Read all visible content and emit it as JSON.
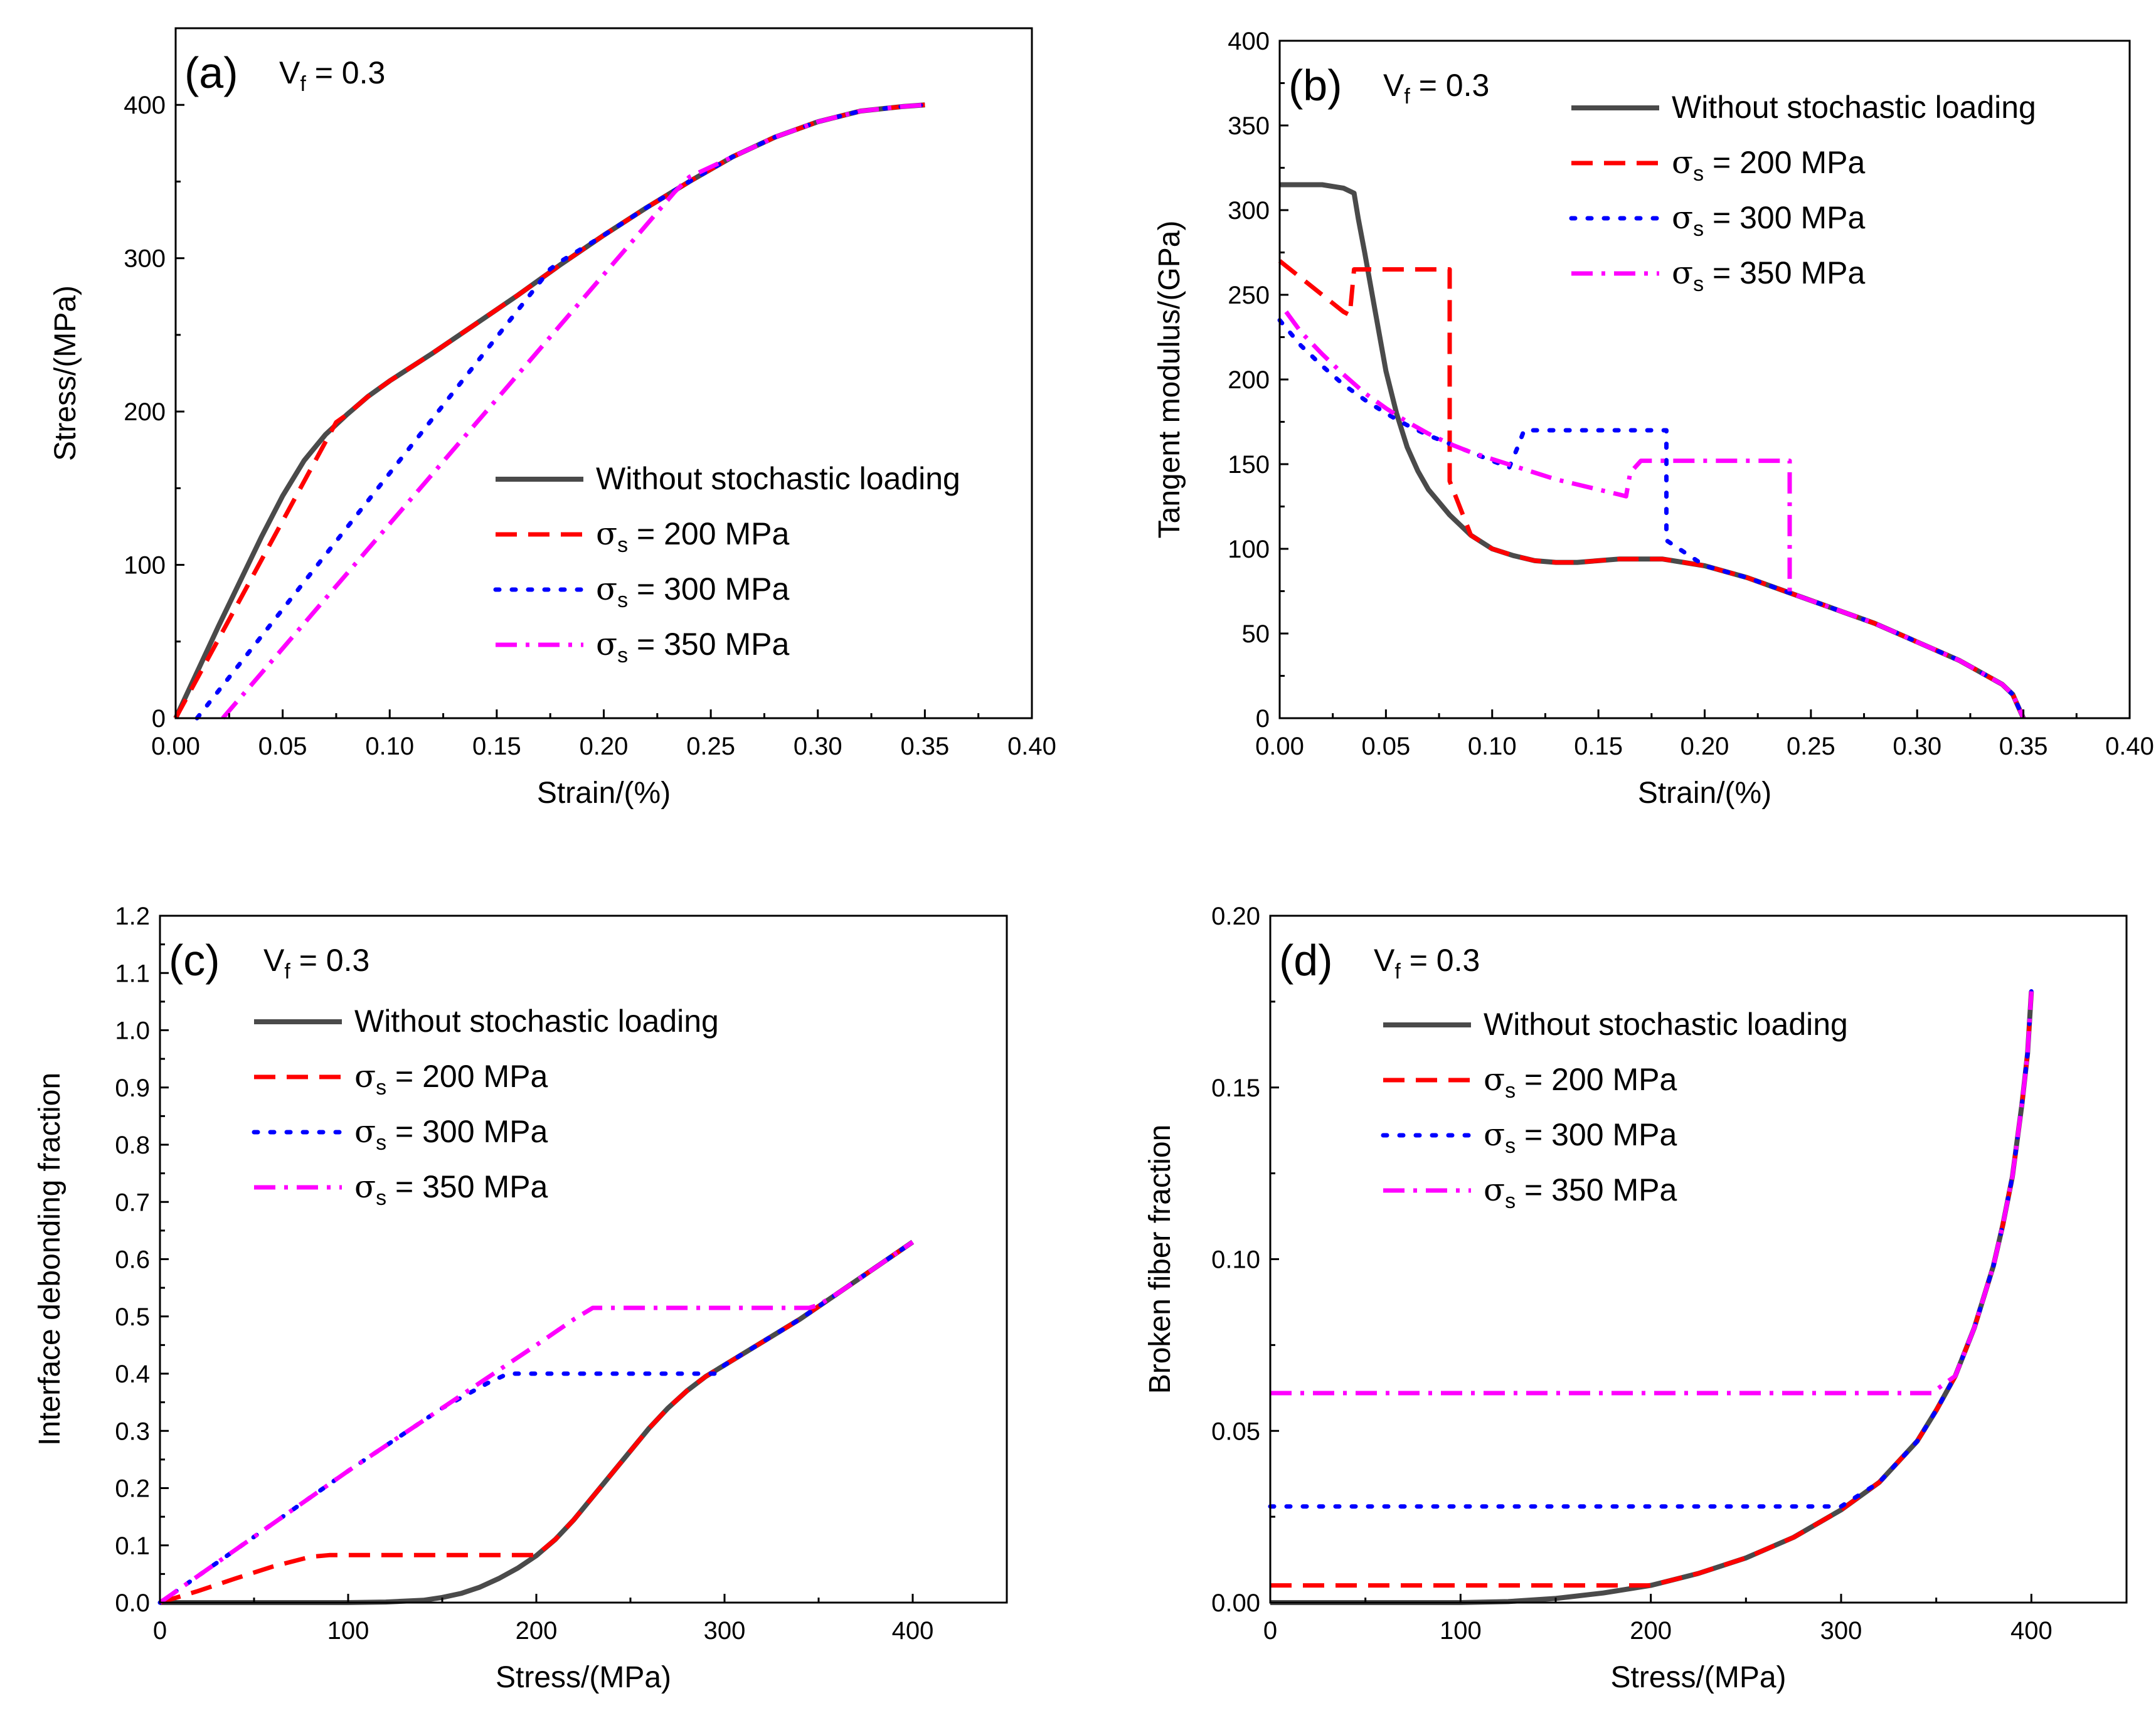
{
  "figure": {
    "colors": {
      "without": "#4a4a4a",
      "s200": "#ff0000",
      "s300": "#0000ff",
      "s350": "#ff00ff",
      "axis": "#000000"
    }
  },
  "chart_data": [
    {
      "panel": "a",
      "type": "line",
      "panel_label": "(a)",
      "vf_label": "V",
      "vf_sub": "f",
      "vf_value": " = 0.3",
      "xlabel": "Strain/(%)",
      "ylabel": "Stress/(MPa)",
      "xlim": [
        0,
        0.4
      ],
      "ylim": [
        0,
        450
      ],
      "xticks": [
        0,
        0.05,
        0.1,
        0.15,
        0.2,
        0.25,
        0.3,
        0.35,
        0.4
      ],
      "xtick_labels": [
        "0.00",
        "0.05",
        "0.10",
        "0.15",
        "0.20",
        "0.25",
        "0.30",
        "0.35",
        "0.40"
      ],
      "yticks": [
        0,
        100,
        200,
        300,
        400
      ],
      "ytick_labels": [
        "0",
        "100",
        "200",
        "300",
        "400"
      ],
      "legend_position": "center-right",
      "series": [
        {
          "name": "Without stochastic loading",
          "symbol": "",
          "sub": "",
          "value": "",
          "style": "solid",
          "color_key": "without",
          "x": [
            0,
            0.02,
            0.04,
            0.05,
            0.06,
            0.07,
            0.08,
            0.09,
            0.1,
            0.12,
            0.14,
            0.16,
            0.18,
            0.2,
            0.22,
            0.24,
            0.26,
            0.28,
            0.3,
            0.32,
            0.34,
            0.35
          ],
          "y": [
            0,
            60,
            118,
            145,
            168,
            185,
            198,
            210,
            220,
            238,
            257,
            276,
            296,
            315,
            333,
            350,
            366,
            379,
            389,
            396,
            399,
            400
          ]
        },
        {
          "name": "",
          "symbol": "σ",
          "sub": "s",
          "value": " = 200 MPa",
          "style": "dashed",
          "color_key": "s200",
          "x": [
            0,
            0.075,
            0.08,
            0.09,
            0.1,
            0.12,
            0.14,
            0.16,
            0.18,
            0.2,
            0.22,
            0.24,
            0.26,
            0.28,
            0.3,
            0.32,
            0.34,
            0.35
          ],
          "y": [
            0,
            193,
            198,
            210,
            220,
            238,
            257,
            276,
            296,
            315,
            333,
            350,
            366,
            379,
            389,
            396,
            399,
            400
          ]
        },
        {
          "name": "",
          "symbol": "σ",
          "sub": "s",
          "value": " = 300 MPa",
          "style": "dotted",
          "color_key": "s300",
          "x": [
            0.01,
            0.175,
            0.18,
            0.2,
            0.22,
            0.24,
            0.26,
            0.28,
            0.3,
            0.32,
            0.34,
            0.35
          ],
          "y": [
            0,
            293,
            298,
            315,
            333,
            350,
            366,
            379,
            389,
            396,
            399,
            400
          ]
        },
        {
          "name": "",
          "symbol": "σ",
          "sub": "s",
          "value": " = 350 MPa",
          "style": "dashdot",
          "color_key": "s350",
          "x": [
            0.022,
            0.233,
            0.24,
            0.26,
            0.28,
            0.3,
            0.32,
            0.34,
            0.35
          ],
          "y": [
            0,
            343,
            353,
            366,
            379,
            389,
            396,
            399,
            400
          ]
        }
      ]
    },
    {
      "panel": "b",
      "type": "line",
      "panel_label": "(b)",
      "vf_label": "V",
      "vf_sub": "f",
      "vf_value": " = 0.3",
      "xlabel": "Strain/(%)",
      "ylabel": "Tangent modulus/(GPa)",
      "xlim": [
        0,
        0.4
      ],
      "ylim": [
        0,
        400
      ],
      "xticks": [
        0,
        0.05,
        0.1,
        0.15,
        0.2,
        0.25,
        0.3,
        0.35,
        0.4
      ],
      "xtick_labels": [
        "0.00",
        "0.05",
        "0.10",
        "0.15",
        "0.20",
        "0.25",
        "0.30",
        "0.35",
        "0.40"
      ],
      "yticks": [
        0,
        50,
        100,
        150,
        200,
        250,
        300,
        350,
        400
      ],
      "ytick_labels": [
        "0",
        "50",
        "100",
        "150",
        "200",
        "250",
        "300",
        "350",
        "400"
      ],
      "legend_position": "top-right",
      "series": [
        {
          "name": "Without stochastic loading",
          "symbol": "",
          "sub": "",
          "value": "",
          "style": "solid",
          "color_key": "without",
          "x": [
            0,
            0.01,
            0.02,
            0.03,
            0.035,
            0.037,
            0.04,
            0.045,
            0.05,
            0.055,
            0.06,
            0.065,
            0.07,
            0.08,
            0.09,
            0.1,
            0.11,
            0.12,
            0.13,
            0.14,
            0.15,
            0.16,
            0.17,
            0.18,
            0.2,
            0.22,
            0.24,
            0.26,
            0.28,
            0.3,
            0.32,
            0.34,
            0.345,
            0.35
          ],
          "y": [
            315,
            315,
            315,
            313,
            310,
            295,
            275,
            240,
            205,
            180,
            160,
            146,
            135,
            120,
            108,
            100,
            96,
            93,
            92,
            92,
            93,
            94,
            94,
            94,
            90,
            83,
            74,
            65,
            56,
            45,
            34,
            20,
            14,
            0
          ]
        },
        {
          "name": "",
          "symbol": "σ",
          "sub": "s",
          "value": " = 200 MPa",
          "style": "dashed",
          "color_key": "s200",
          "x": [
            0,
            0.01,
            0.02,
            0.03,
            0.033,
            0.035,
            0.05,
            0.07,
            0.08,
            0.08,
            0.09,
            0.1,
            0.11,
            0.12,
            0.13,
            0.14,
            0.15,
            0.16,
            0.17,
            0.18,
            0.2,
            0.22,
            0.24,
            0.26,
            0.28,
            0.3,
            0.32,
            0.34,
            0.345,
            0.35
          ],
          "y": [
            270,
            260,
            250,
            240,
            238,
            265,
            265,
            265,
            265,
            140,
            108,
            100,
            96,
            93,
            92,
            92,
            93,
            94,
            94,
            94,
            90,
            83,
            74,
            65,
            56,
            45,
            34,
            20,
            14,
            0
          ]
        },
        {
          "name": "",
          "symbol": "σ",
          "sub": "s",
          "value": " = 300 MPa",
          "style": "dotted",
          "color_key": "s300",
          "x": [
            0,
            0.01,
            0.02,
            0.03,
            0.04,
            0.05,
            0.06,
            0.07,
            0.08,
            0.09,
            0.1,
            0.108,
            0.112,
            0.115,
            0.13,
            0.15,
            0.17,
            0.182,
            0.182,
            0.2,
            0.22,
            0.24,
            0.26,
            0.28,
            0.3,
            0.32,
            0.34,
            0.345,
            0.35
          ],
          "y": [
            235,
            220,
            208,
            197,
            188,
            180,
            173,
            167,
            162,
            157,
            152,
            148,
            160,
            170,
            170,
            170,
            170,
            170,
            105,
            90,
            83,
            74,
            65,
            56,
            45,
            34,
            20,
            14,
            0
          ]
        },
        {
          "name": "",
          "symbol": "σ",
          "sub": "s",
          "value": " = 350 MPa",
          "style": "dashdot",
          "color_key": "s350",
          "x": [
            0.003,
            0.01,
            0.02,
            0.03,
            0.04,
            0.05,
            0.06,
            0.07,
            0.08,
            0.09,
            0.1,
            0.11,
            0.12,
            0.13,
            0.14,
            0.15,
            0.16,
            0.163,
            0.165,
            0.17,
            0.2,
            0.22,
            0.24,
            0.24,
            0.26,
            0.28,
            0.3,
            0.32,
            0.34,
            0.345,
            0.35
          ],
          "y": [
            240,
            228,
            215,
            203,
            192,
            183,
            175,
            168,
            162,
            157,
            153,
            149,
            145,
            141,
            138,
            135,
            132,
            131,
            145,
            152,
            152,
            152,
            152,
            74,
            65,
            56,
            45,
            34,
            20,
            14,
            0
          ]
        }
      ]
    },
    {
      "panel": "c",
      "type": "line",
      "panel_label": "(c)",
      "vf_label": "V",
      "vf_sub": "f",
      "vf_value": " = 0.3",
      "xlabel": "Stress/(MPa)",
      "ylabel": "Interface debonding fraction",
      "xlim": [
        0,
        450
      ],
      "ylim": [
        0,
        1.2
      ],
      "xticks": [
        0,
        100,
        200,
        300,
        400
      ],
      "xtick_labels": [
        "0",
        "100",
        "200",
        "300",
        "400"
      ],
      "yticks": [
        0,
        0.1,
        0.2,
        0.3,
        0.4,
        0.5,
        0.6,
        0.7,
        0.8,
        0.9,
        1.0,
        1.1,
        1.2
      ],
      "ytick_labels": [
        "0.0",
        "0.1",
        "0.2",
        "0.3",
        "0.4",
        "0.5",
        "0.6",
        "0.7",
        "0.8",
        "0.9",
        "1.0",
        "1.1",
        "1.2"
      ],
      "legend_position": "top-left",
      "series": [
        {
          "name": "Without stochastic loading",
          "symbol": "",
          "sub": "",
          "value": "",
          "style": "solid",
          "color_key": "without",
          "x": [
            0,
            100,
            120,
            140,
            150,
            160,
            170,
            180,
            190,
            200,
            210,
            220,
            230,
            240,
            250,
            260,
            270,
            280,
            290,
            300,
            320,
            340,
            360,
            380,
            400
          ],
          "y": [
            0,
            0,
            0.001,
            0.004,
            0.009,
            0.016,
            0.027,
            0.042,
            0.06,
            0.082,
            0.11,
            0.145,
            0.185,
            0.225,
            0.265,
            0.305,
            0.34,
            0.37,
            0.395,
            0.415,
            0.455,
            0.495,
            0.54,
            0.585,
            0.63
          ]
        },
        {
          "name": "",
          "symbol": "σ",
          "sub": "s",
          "value": " = 200 MPa",
          "style": "dashed",
          "color_key": "s200",
          "x": [
            0,
            20,
            40,
            60,
            80,
            90,
            100,
            150,
            200,
            210,
            220,
            230,
            240,
            250,
            260,
            270,
            280,
            290,
            300,
            320,
            340,
            360,
            380,
            400
          ],
          "y": [
            0,
            0.02,
            0.042,
            0.063,
            0.08,
            0.083,
            0.083,
            0.083,
            0.083,
            0.11,
            0.145,
            0.185,
            0.225,
            0.265,
            0.305,
            0.34,
            0.37,
            0.395,
            0.415,
            0.455,
            0.495,
            0.54,
            0.585,
            0.63
          ]
        },
        {
          "name": "",
          "symbol": "σ",
          "sub": "s",
          "value": " = 300 MPa",
          "style": "dotted",
          "color_key": "s300",
          "x": [
            0,
            50,
            100,
            150,
            175,
            185,
            200,
            250,
            295,
            300,
            320,
            340,
            360,
            380,
            400
          ],
          "y": [
            0,
            0.115,
            0.23,
            0.34,
            0.385,
            0.4,
            0.4,
            0.4,
            0.4,
            0.415,
            0.455,
            0.495,
            0.54,
            0.585,
            0.63
          ]
        },
        {
          "name": "",
          "symbol": "σ",
          "sub": "s",
          "value": " = 350 MPa",
          "style": "dashdot",
          "color_key": "s350",
          "x": [
            0,
            50,
            100,
            150,
            200,
            220,
            230,
            250,
            300,
            345,
            350,
            360,
            380,
            400
          ],
          "y": [
            0,
            0.115,
            0.23,
            0.34,
            0.45,
            0.495,
            0.515,
            0.515,
            0.515,
            0.515,
            0.52,
            0.54,
            0.585,
            0.63
          ]
        }
      ]
    },
    {
      "panel": "d",
      "type": "line",
      "panel_label": "(d)",
      "vf_label": "V",
      "vf_sub": "f",
      "vf_value": " = 0.3",
      "xlabel": "Stress/(MPa)",
      "ylabel": "Broken fiber fraction",
      "xlim": [
        0,
        450
      ],
      "ylim": [
        0,
        0.2
      ],
      "xticks": [
        0,
        100,
        200,
        300,
        400
      ],
      "xtick_labels": [
        "0",
        "100",
        "200",
        "300",
        "400"
      ],
      "yticks": [
        0,
        0.05,
        0.1,
        0.15,
        0.2
      ],
      "ytick_labels": [
        "0.00",
        "0.05",
        "0.10",
        "0.15",
        "0.20"
      ],
      "legend_position": "top-left",
      "series": [
        {
          "name": "Without stochastic loading",
          "symbol": "",
          "sub": "",
          "value": "",
          "style": "solid",
          "color_key": "without",
          "x": [
            0,
            100,
            125,
            150,
            175,
            200,
            225,
            250,
            275,
            300,
            320,
            340,
            350,
            360,
            370,
            380,
            385,
            390,
            395,
            398,
            400
          ],
          "y": [
            0,
            0,
            0.0003,
            0.0012,
            0.0028,
            0.005,
            0.0085,
            0.013,
            0.019,
            0.027,
            0.035,
            0.047,
            0.056,
            0.066,
            0.08,
            0.098,
            0.11,
            0.124,
            0.145,
            0.16,
            0.178
          ]
        },
        {
          "name": "",
          "symbol": "σ",
          "sub": "s",
          "value": " = 200 MPa",
          "style": "dashed",
          "color_key": "s200",
          "x": [
            0,
            200,
            225,
            250,
            275,
            300,
            320,
            340,
            350,
            360,
            370,
            380,
            385,
            390,
            395,
            398,
            400
          ],
          "y": [
            0.005,
            0.005,
            0.0085,
            0.013,
            0.019,
            0.027,
            0.035,
            0.047,
            0.056,
            0.066,
            0.08,
            0.098,
            0.11,
            0.124,
            0.145,
            0.16,
            0.178
          ]
        },
        {
          "name": "",
          "symbol": "σ",
          "sub": "s",
          "value": " = 300 MPa",
          "style": "dotted",
          "color_key": "s300",
          "x": [
            0,
            300,
            320,
            340,
            350,
            360,
            370,
            380,
            385,
            390,
            395,
            398,
            400
          ],
          "y": [
            0.028,
            0.028,
            0.035,
            0.047,
            0.056,
            0.066,
            0.08,
            0.098,
            0.11,
            0.124,
            0.145,
            0.16,
            0.178
          ]
        },
        {
          "name": "",
          "symbol": "σ",
          "sub": "s",
          "value": " = 350 MPa",
          "style": "dashdot",
          "color_key": "s350",
          "x": [
            0,
            348,
            350,
            360,
            370,
            380,
            385,
            390,
            395,
            398,
            400
          ],
          "y": [
            0.061,
            0.061,
            0.062,
            0.066,
            0.08,
            0.098,
            0.11,
            0.124,
            0.145,
            0.16,
            0.178
          ]
        }
      ]
    }
  ]
}
